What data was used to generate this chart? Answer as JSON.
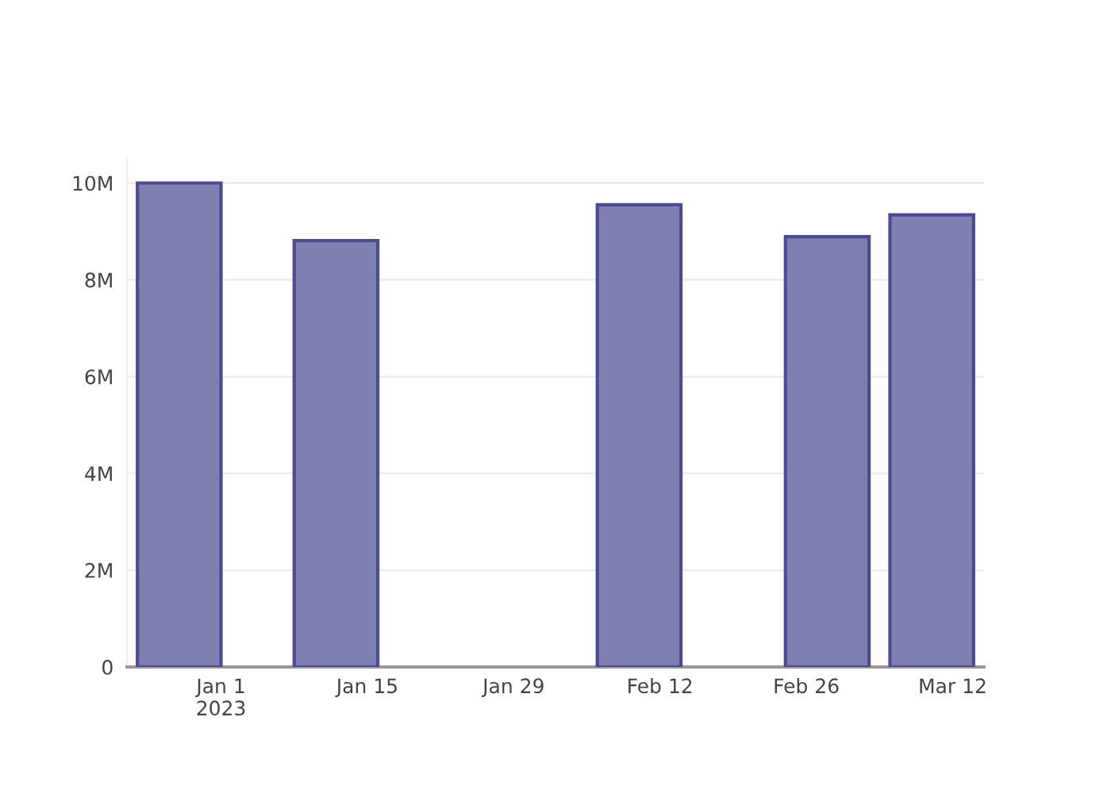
{
  "chart_data": {
    "type": "bar",
    "x": [
      "2022-12-28",
      "2023-01-12",
      "2023-02-10",
      "2023-02-28",
      "2023-03-10"
    ],
    "values": [
      10000000,
      8810000,
      9550000,
      8890000,
      9340000
    ],
    "color": "#7f7fb0",
    "xlim": [
      "2022-12-23",
      "2023-03-15"
    ],
    "xticks": [
      {
        "value": "2023-01-01",
        "label": "Jan 1\n2023"
      },
      {
        "value": "2023-01-15",
        "label": "Jan 15"
      },
      {
        "value": "2023-01-29",
        "label": "Jan 29"
      },
      {
        "value": "2023-02-12",
        "label": "Feb 12"
      },
      {
        "value": "2023-02-26",
        "label": "Feb 26"
      },
      {
        "value": "2023-03-12",
        "label": "Mar 12"
      }
    ],
    "ylim": [
      0,
      10500000
    ],
    "yticks": [
      0,
      {
        "value": 2000000,
        "label": "2M"
      },
      {
        "value": 4000000,
        "label": "4M"
      },
      {
        "value": 6000000,
        "label": "6M"
      },
      {
        "value": 8000000,
        "label": "8M"
      },
      {
        "value": 10000000,
        "label": "10M"
      }
    ],
    "grid": "y"
  }
}
